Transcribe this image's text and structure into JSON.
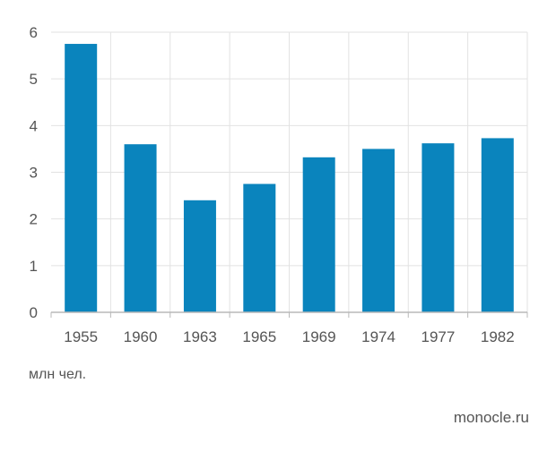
{
  "chart_data": {
    "type": "bar",
    "categories": [
      "1955",
      "1960",
      "1963",
      "1965",
      "1969",
      "1974",
      "1977",
      "1982"
    ],
    "values": [
      5.75,
      3.6,
      2.4,
      2.75,
      3.32,
      3.5,
      3.62,
      3.73
    ],
    "title": "",
    "xlabel": "",
    "ylabel": "млн чел.",
    "ylim": [
      0,
      6
    ],
    "yticks": [
      "0",
      "1",
      "2",
      "3",
      "4",
      "5",
      "6"
    ],
    "grid": true,
    "bar_color": "#0a84bd",
    "grid_color": "#e2e2e2",
    "axis_color": "#b8b8b8"
  },
  "footer": {
    "unit": "млн чел.",
    "source": "monocle.ru"
  }
}
